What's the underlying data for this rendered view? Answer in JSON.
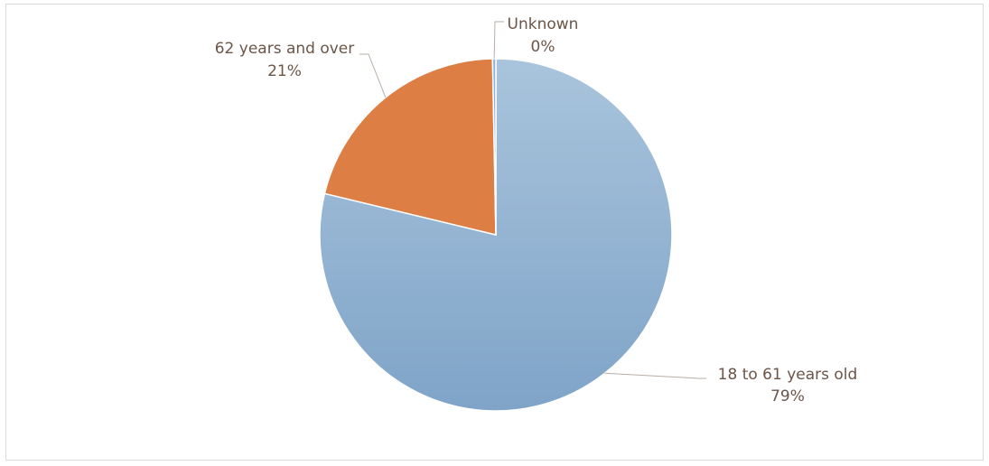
{
  "chart_data": {
    "type": "pie",
    "title": "",
    "categories": [
      "18 to 61 years old",
      "62 years and over",
      "Unknown"
    ],
    "values": [
      79,
      21,
      0.3
    ],
    "percent_labels": [
      "79%",
      "21%",
      "0%"
    ],
    "colors": [
      "#8fb2d5",
      "#dd7f45",
      "#8fb2d5"
    ],
    "start_angle_deg": 0,
    "direction": "clockwise",
    "legend": "none",
    "data_labels": "outside-with-leader-lines"
  }
}
